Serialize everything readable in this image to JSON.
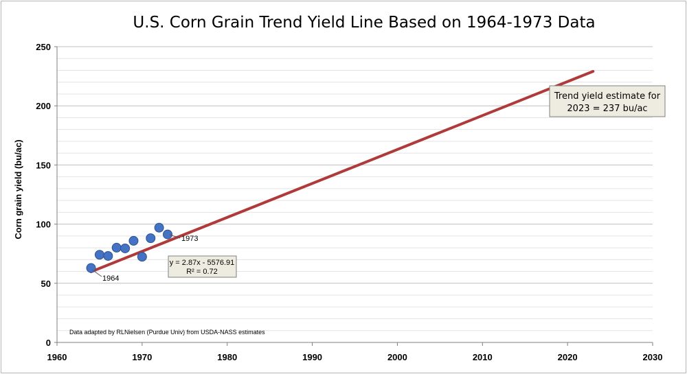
{
  "chart_data": {
    "type": "scatter",
    "title": "U.S. Corn Grain Trend Yield Line Based on 1964-1973 Data",
    "xlabel": "",
    "ylabel": "Corn grain yield (bu/ac)",
    "xlim": [
      1960,
      2030
    ],
    "ylim": [
      0,
      250
    ],
    "x_ticks": [
      1960,
      1970,
      1980,
      1990,
      2000,
      2010,
      2020,
      2030
    ],
    "y_ticks": [
      0,
      50,
      100,
      150,
      200,
      250
    ],
    "grid": "horizontal",
    "series": [
      {
        "x": [
          1964,
          1965,
          1966,
          1967,
          1968,
          1969,
          1970,
          1971,
          1972,
          1973
        ],
        "y": [
          62.9,
          74.1,
          73.1,
          80.1,
          79.5,
          85.9,
          72.4,
          88.1,
          97.0,
          91.3
        ],
        "color": "#4472c4"
      }
    ],
    "trendline": {
      "x_start": 1964,
      "x_end": 2023,
      "slope": 2.87,
      "intercept": -5576.91,
      "color": "#b03a3a"
    },
    "annotations": {
      "first_point_label": "1964",
      "last_point_label": "1973",
      "equation": "y = 2.87x - 5576.91",
      "r_squared": "R² = 0.72",
      "estimate_line1": "Trend yield estimate for",
      "estimate_line2": "2023 = 237 bu/ac",
      "footnote": "Data adapted by RLNielsen (Purdue Univ) from USDA-NASS estimates"
    },
    "box_fill": "#eeece1"
  }
}
